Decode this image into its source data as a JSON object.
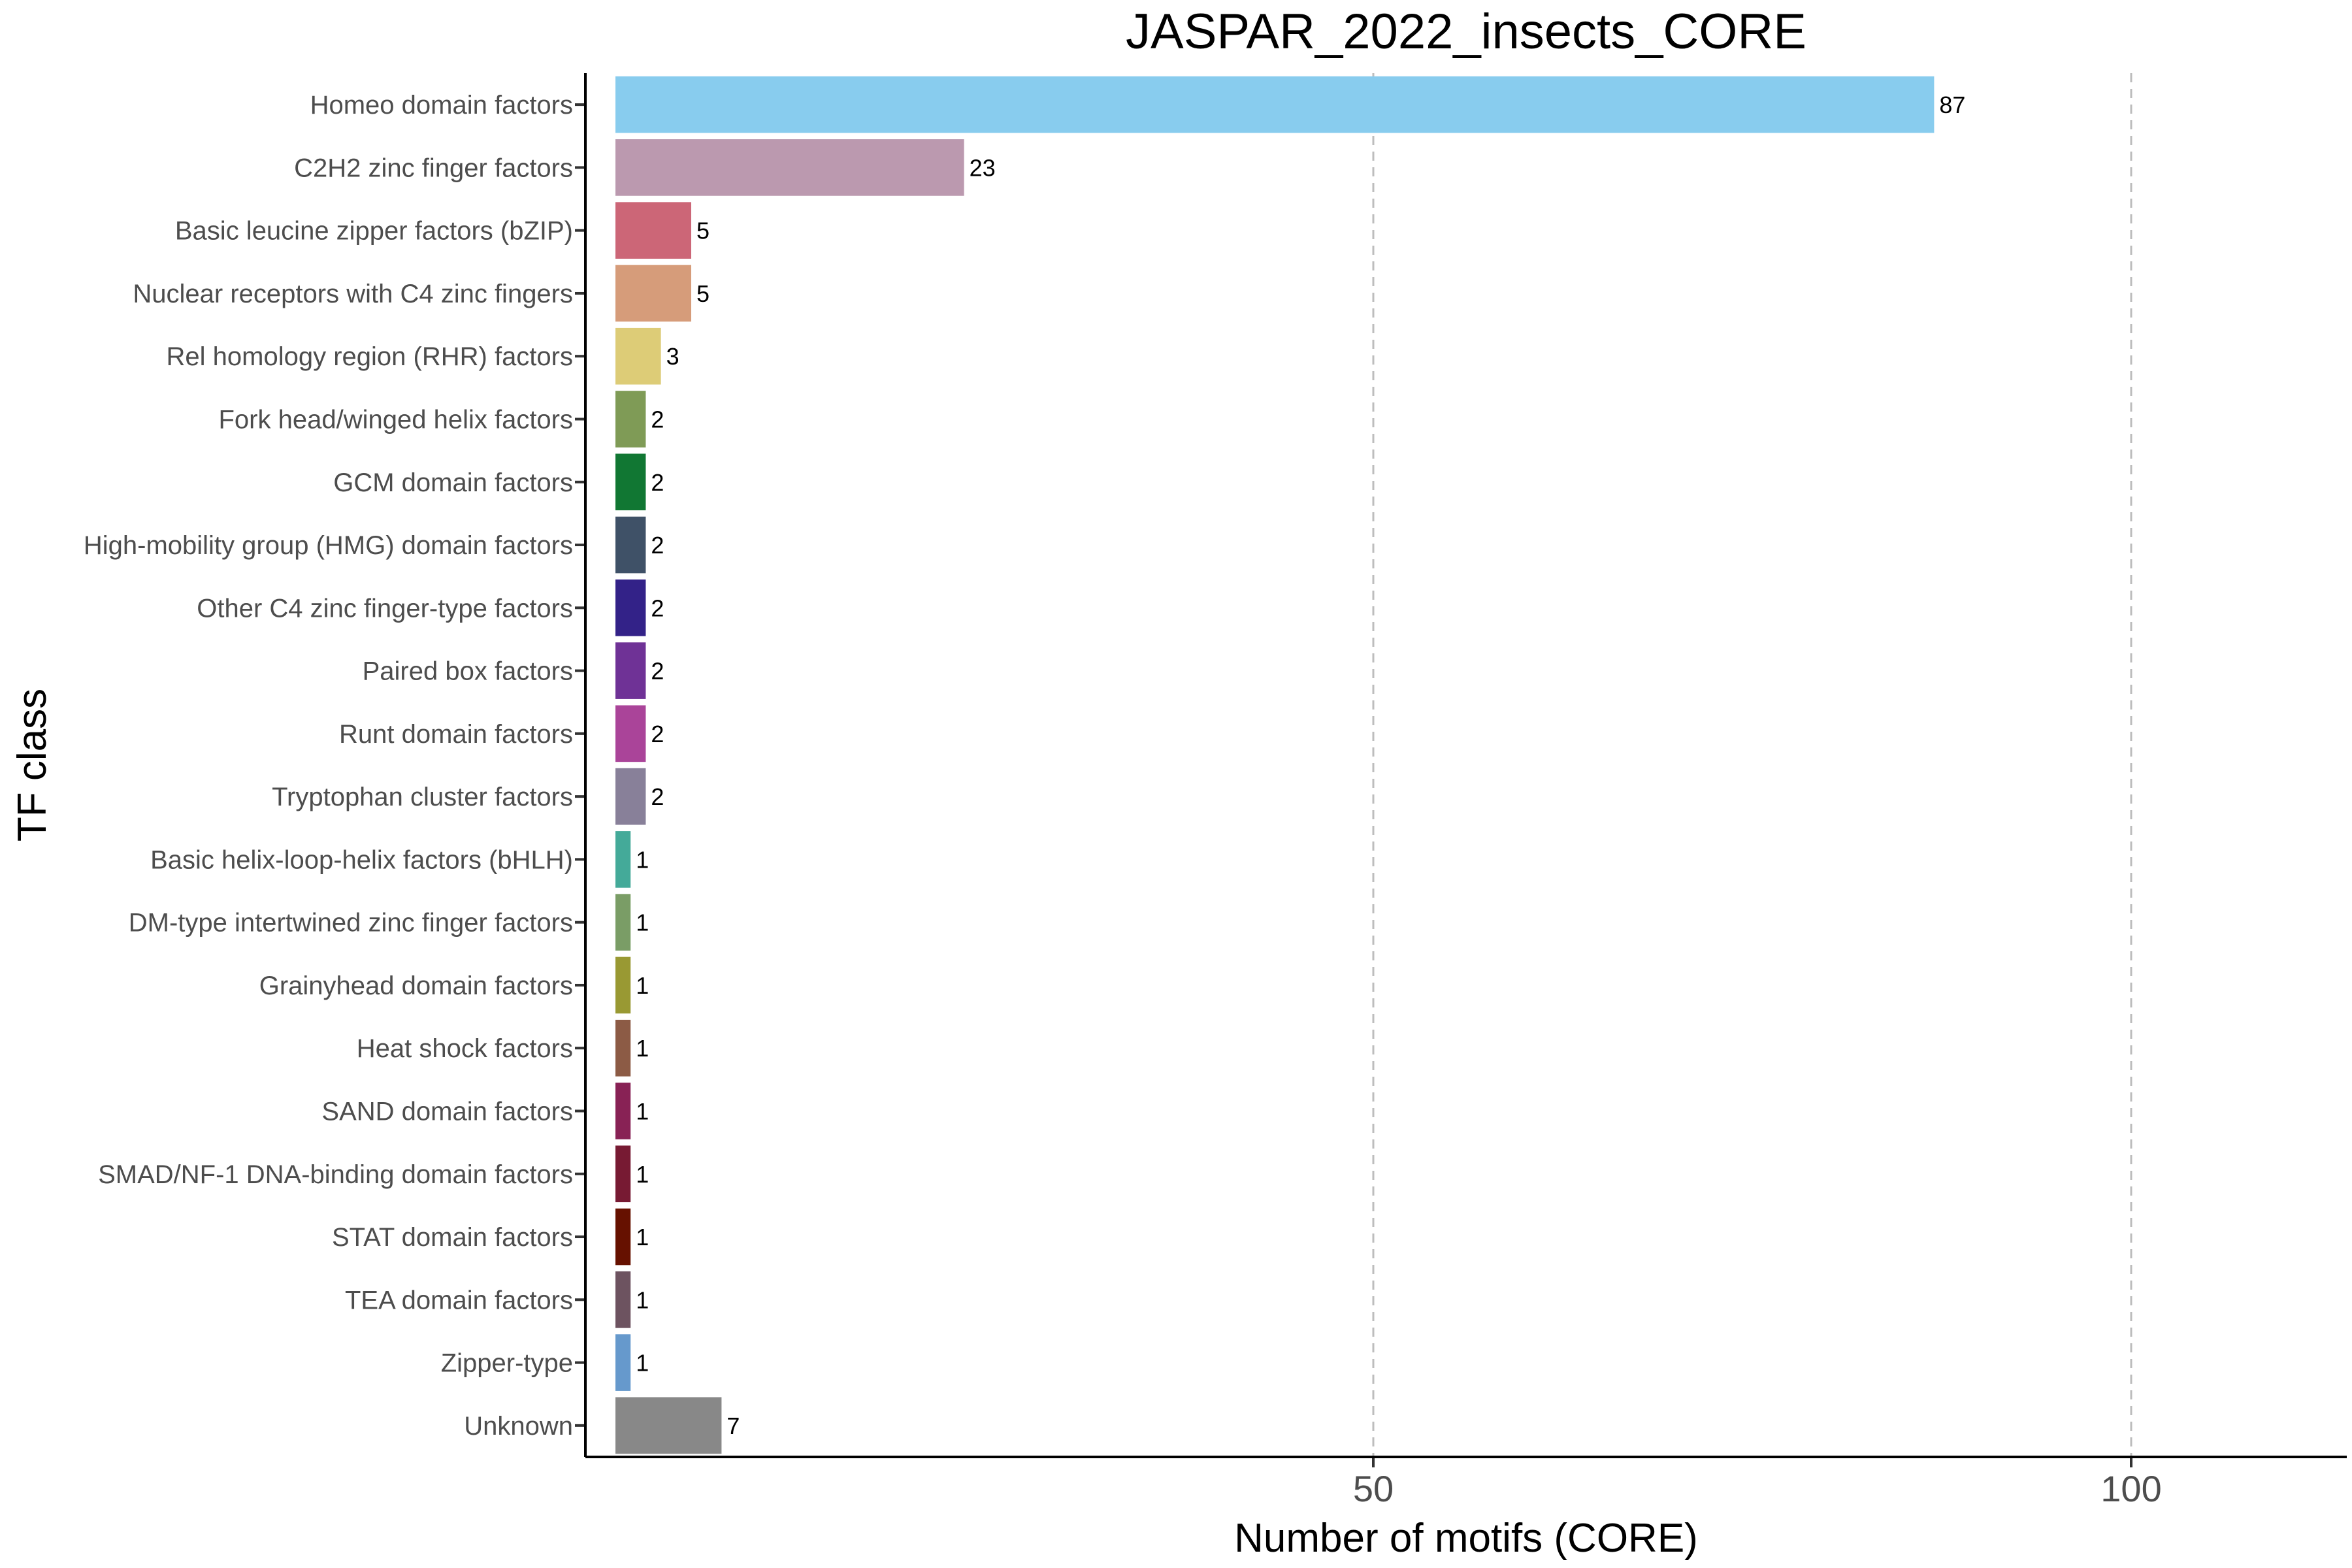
{
  "chart_data": {
    "type": "bar",
    "orientation": "horizontal",
    "title": "JASPAR_2022_insects_CORE",
    "xlabel": "Number of motifs (CORE)",
    "ylabel": "TF class",
    "xlim": [
      0,
      115
    ],
    "xticks": [
      "50",
      "100"
    ],
    "grid": "vertical dashed at major x ticks",
    "legend": "none",
    "categories": [
      "Homeo domain factors",
      "C2H2 zinc finger factors",
      "Basic leucine zipper factors (bZIP)",
      "Nuclear receptors with C4 zinc fingers",
      "Rel homology region (RHR) factors",
      "Fork head/winged helix factors",
      "GCM domain factors",
      "High-mobility group (HMG) domain factors",
      "Other C4 zinc finger-type factors",
      "Paired box factors",
      "Runt domain factors",
      "Tryptophan cluster factors",
      "Basic helix-loop-helix factors (bHLH)",
      "DM-type intertwined zinc finger factors",
      "Grainyhead domain factors",
      "Heat shock factors",
      "SAND domain factors",
      "SMAD/NF-1 DNA-binding domain factors",
      "STAT domain factors",
      "TEA domain factors",
      "Zipper-type",
      "Unknown"
    ],
    "values": [
      87,
      23,
      5,
      5,
      3,
      2,
      2,
      2,
      2,
      2,
      2,
      2,
      1,
      1,
      1,
      1,
      1,
      1,
      1,
      1,
      1,
      7
    ],
    "colors": [
      "#88CCEE",
      "#BB99AF",
      "#CC6677",
      "#D69C7A",
      "#DDCC77",
      "#7F9B56",
      "#117733",
      "#3F5167",
      "#332288",
      "#6F3296",
      "#AA4499",
      "#888099",
      "#44AA99",
      "#7A9D66",
      "#999933",
      "#8C5B45",
      "#882255",
      "#771A33",
      "#661100",
      "#6D5360",
      "#6699CC",
      "#888888"
    ]
  }
}
